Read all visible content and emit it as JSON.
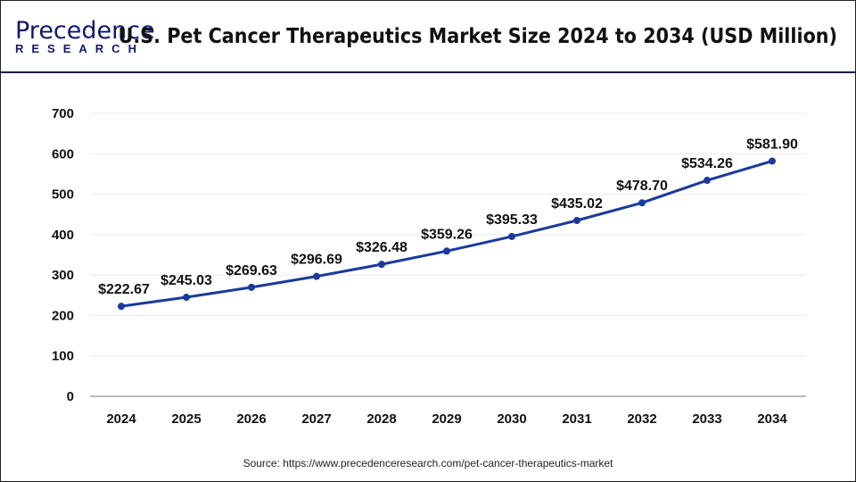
{
  "header": {
    "logo_top": "Precedence",
    "logo_bottom": "RESEARCH",
    "title": "U.S. Pet Cancer Therapeutics Market Size 2024 to 2034 (USD Million)"
  },
  "source": "Source: https://www.precedenceresearch.com/pet-cancer-therapeutics-market",
  "colors": {
    "line": "#1a3a9c",
    "accent": "#0d1a6b"
  },
  "chart_data": {
    "type": "line",
    "title": "U.S. Pet Cancer Therapeutics Market Size 2024 to 2034 (USD Million)",
    "categories": [
      "2024",
      "2025",
      "2026",
      "2027",
      "2028",
      "2029",
      "2030",
      "2031",
      "2032",
      "2033",
      "2034"
    ],
    "values": [
      222.67,
      245.03,
      269.63,
      296.69,
      326.48,
      359.26,
      395.33,
      435.02,
      478.7,
      534.26,
      581.9
    ],
    "labels": [
      "$222.67",
      "$245.03",
      "$269.63",
      "$296.69",
      "$326.48",
      "$359.26",
      "$395.33",
      "$435.02",
      "$478.70",
      "$534.26",
      "$581.90"
    ],
    "yticks": [
      "0",
      "100",
      "200",
      "300",
      "400",
      "500",
      "600",
      "700"
    ],
    "ylim": [
      0,
      700
    ],
    "grid": true,
    "xlabel": "",
    "ylabel": ""
  }
}
